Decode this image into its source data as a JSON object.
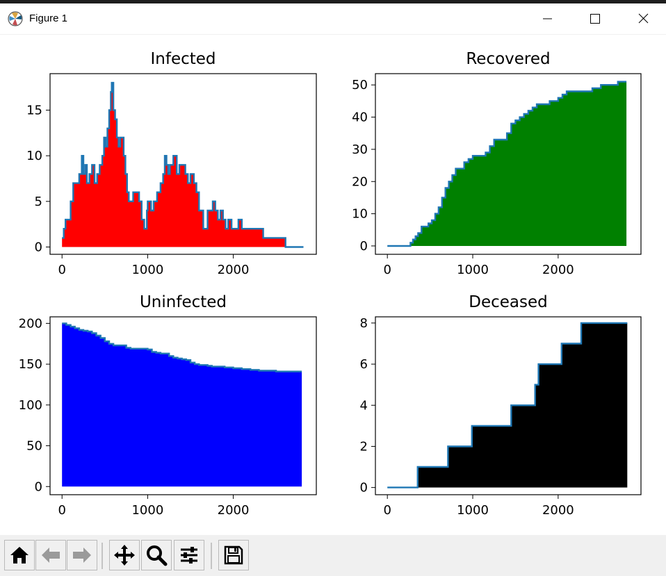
{
  "window": {
    "title": "Figure 1",
    "icons": [
      "matplotlib-logo-icon",
      "minimize-icon",
      "maximize-icon",
      "close-icon"
    ]
  },
  "toolbar": {
    "tools": [
      {
        "name": "home-icon",
        "label": "Home"
      },
      {
        "name": "back-icon",
        "label": "Back"
      },
      {
        "name": "forward-icon",
        "label": "Forward"
      },
      {
        "name": "pan-icon",
        "label": "Pan"
      },
      {
        "name": "zoom-icon",
        "label": "Zoom"
      },
      {
        "name": "configure-subplots-icon",
        "label": "Configure subplots"
      },
      {
        "name": "save-icon",
        "label": "Save"
      }
    ]
  },
  "chart_data": [
    {
      "type": "area",
      "title": "Infected",
      "fill_color": "#ff0000",
      "line_color": "#1f77b4",
      "xlim": [
        -140,
        2970
      ],
      "ylim": [
        -0.8,
        19
      ],
      "xticks": [
        0,
        1000,
        2000
      ],
      "yticks": [
        0,
        5,
        10,
        15
      ],
      "x": [
        0,
        20,
        40,
        70,
        100,
        130,
        180,
        200,
        230,
        250,
        270,
        290,
        320,
        350,
        380,
        410,
        440,
        470,
        490,
        510,
        530,
        550,
        570,
        580,
        600,
        620,
        640,
        660,
        680,
        700,
        720,
        740,
        760,
        780,
        800,
        830,
        860,
        900,
        930,
        960,
        990,
        1000,
        1020,
        1040,
        1070,
        1110,
        1150,
        1180,
        1200,
        1220,
        1240,
        1260,
        1300,
        1340,
        1370,
        1400,
        1440,
        1470,
        1500,
        1540,
        1570,
        1600,
        1650,
        1700,
        1730,
        1760,
        1790,
        1820,
        1850,
        1880,
        1910,
        1940,
        1980,
        2020,
        2060,
        2100,
        2140,
        2200,
        2250,
        2300,
        2350,
        2400,
        2450,
        2500,
        2550,
        2600,
        2610,
        2650,
        2700,
        2800,
        2820
      ],
      "y": [
        1,
        2,
        3,
        3,
        5,
        7,
        7,
        8,
        10,
        8,
        9,
        7,
        8,
        9,
        7,
        8,
        9,
        10,
        12,
        11,
        13,
        15,
        17,
        18,
        15,
        14,
        12,
        11,
        12,
        12,
        10,
        8,
        6,
        5,
        5,
        6,
        6,
        5,
        3,
        2,
        4,
        5,
        5,
        4,
        5,
        6,
        7,
        8,
        10,
        9,
        8,
        9,
        10,
        8,
        9,
        9,
        8,
        7,
        8,
        7,
        6,
        4,
        2,
        4,
        4,
        5,
        4,
        3,
        4,
        3,
        2,
        3,
        2,
        2,
        3,
        2,
        2,
        2,
        2,
        2,
        1,
        1,
        1,
        1,
        1,
        1,
        0,
        0,
        0,
        0,
        0
      ]
    },
    {
      "type": "area",
      "title": "Recovered",
      "fill_color": "#008000",
      "line_color": "#1f77b4",
      "xlim": [
        -140,
        2970
      ],
      "ylim": [
        -2.6,
        53.5
      ],
      "xticks": [
        0,
        1000,
        2000
      ],
      "yticks": [
        0,
        10,
        20,
        30,
        40,
        50
      ],
      "x": [
        0,
        250,
        270,
        300,
        330,
        360,
        400,
        440,
        480,
        520,
        560,
        600,
        640,
        680,
        720,
        760,
        800,
        850,
        900,
        950,
        1000,
        1050,
        1100,
        1150,
        1200,
        1250,
        1300,
        1350,
        1400,
        1450,
        1500,
        1550,
        1600,
        1650,
        1700,
        1750,
        1800,
        1900,
        1950,
        2000,
        2050,
        2100,
        2200,
        2300,
        2400,
        2500,
        2600,
        2700,
        2800
      ],
      "y": [
        0,
        0,
        1,
        2,
        3,
        4,
        6,
        6,
        7,
        8,
        10,
        12,
        15,
        18,
        20,
        22,
        24,
        24,
        26,
        27,
        28,
        28,
        28,
        29,
        31,
        33,
        33,
        33,
        35,
        38,
        39,
        40,
        41,
        42,
        43,
        44,
        44,
        45,
        45,
        46,
        47,
        48,
        48,
        48,
        49,
        50,
        50,
        51,
        51
      ]
    },
    {
      "type": "area",
      "title": "Uninfected",
      "fill_color": "#0000ff",
      "line_color": "#1f77b4",
      "xlim": [
        -140,
        2970
      ],
      "ylim": [
        -10,
        208
      ],
      "xticks": [
        0,
        1000,
        2000
      ],
      "yticks": [
        0,
        50,
        100,
        150,
        200
      ],
      "x": [
        0,
        50,
        100,
        150,
        200,
        250,
        300,
        350,
        400,
        450,
        500,
        550,
        600,
        700,
        750,
        800,
        900,
        1000,
        1050,
        1100,
        1150,
        1200,
        1250,
        1300,
        1350,
        1400,
        1450,
        1500,
        1550,
        1600,
        1650,
        1700,
        1750,
        1800,
        1900,
        2000,
        2100,
        2200,
        2300,
        2400,
        2500,
        2600,
        2700,
        2800
      ],
      "y": [
        200,
        198,
        196,
        194,
        192,
        191,
        190,
        188,
        185,
        182,
        178,
        175,
        173,
        173,
        170,
        169,
        169,
        168,
        165,
        164,
        163,
        163,
        160,
        158,
        157,
        156,
        155,
        152,
        150,
        149,
        149,
        148,
        147,
        147,
        146,
        145,
        144,
        143,
        142,
        142,
        141,
        141,
        141,
        141
      ]
    },
    {
      "type": "area",
      "title": "Deceased",
      "fill_color": "#000000",
      "line_color": "#1f77b4",
      "xlim": [
        -140,
        2970
      ],
      "ylim": [
        -0.35,
        8.3
      ],
      "xticks": [
        0,
        1000,
        2000
      ],
      "yticks": [
        0,
        2,
        4,
        6,
        8
      ],
      "x": [
        0,
        355,
        355,
        710,
        710,
        990,
        990,
        1450,
        1450,
        1730,
        1730,
        1770,
        1770,
        2040,
        2040,
        2270,
        2270,
        2810
      ],
      "y": [
        0,
        0,
        1,
        1,
        2,
        2,
        3,
        3,
        4,
        4,
        5,
        5,
        6,
        6,
        7,
        7,
        8,
        8
      ]
    }
  ]
}
